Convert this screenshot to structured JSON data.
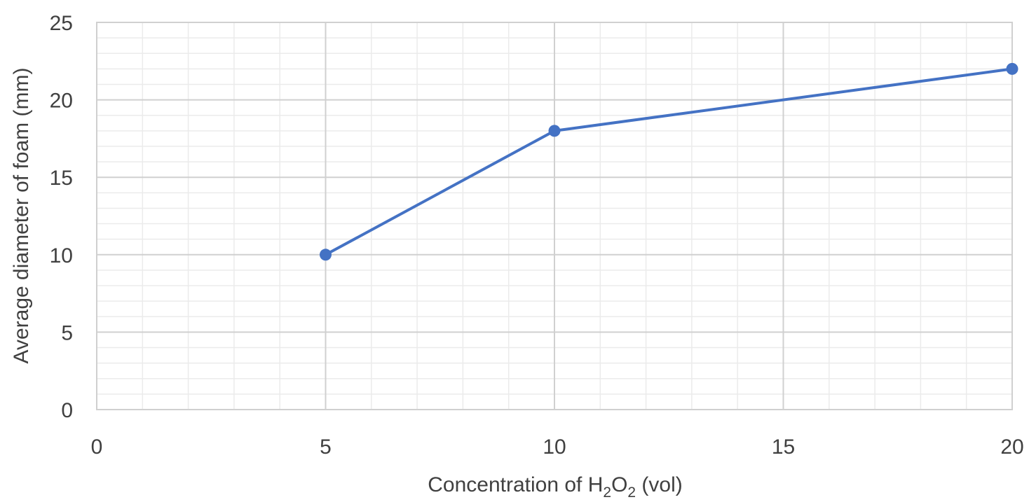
{
  "chart_data": {
    "type": "line",
    "title": "",
    "xlabel": {
      "prefix": "Concentration of H",
      "sub1": "2",
      "mid": "O",
      "sub2": "2",
      "suffix": " (vol)"
    },
    "ylabel": "Average diameter of foam (mm)",
    "xlim": [
      0,
      20
    ],
    "ylim": [
      0,
      25
    ],
    "xticks": [
      0,
      5,
      10,
      15,
      20
    ],
    "yticks": [
      0,
      5,
      10,
      15,
      20,
      25
    ],
    "x_minor_step": 1,
    "y_minor_step": 1,
    "grid": true,
    "series": [
      {
        "x": [
          5,
          10,
          20
        ],
        "y": [
          10,
          18,
          22
        ],
        "color": "#4472C4",
        "marker": "circle"
      }
    ]
  }
}
